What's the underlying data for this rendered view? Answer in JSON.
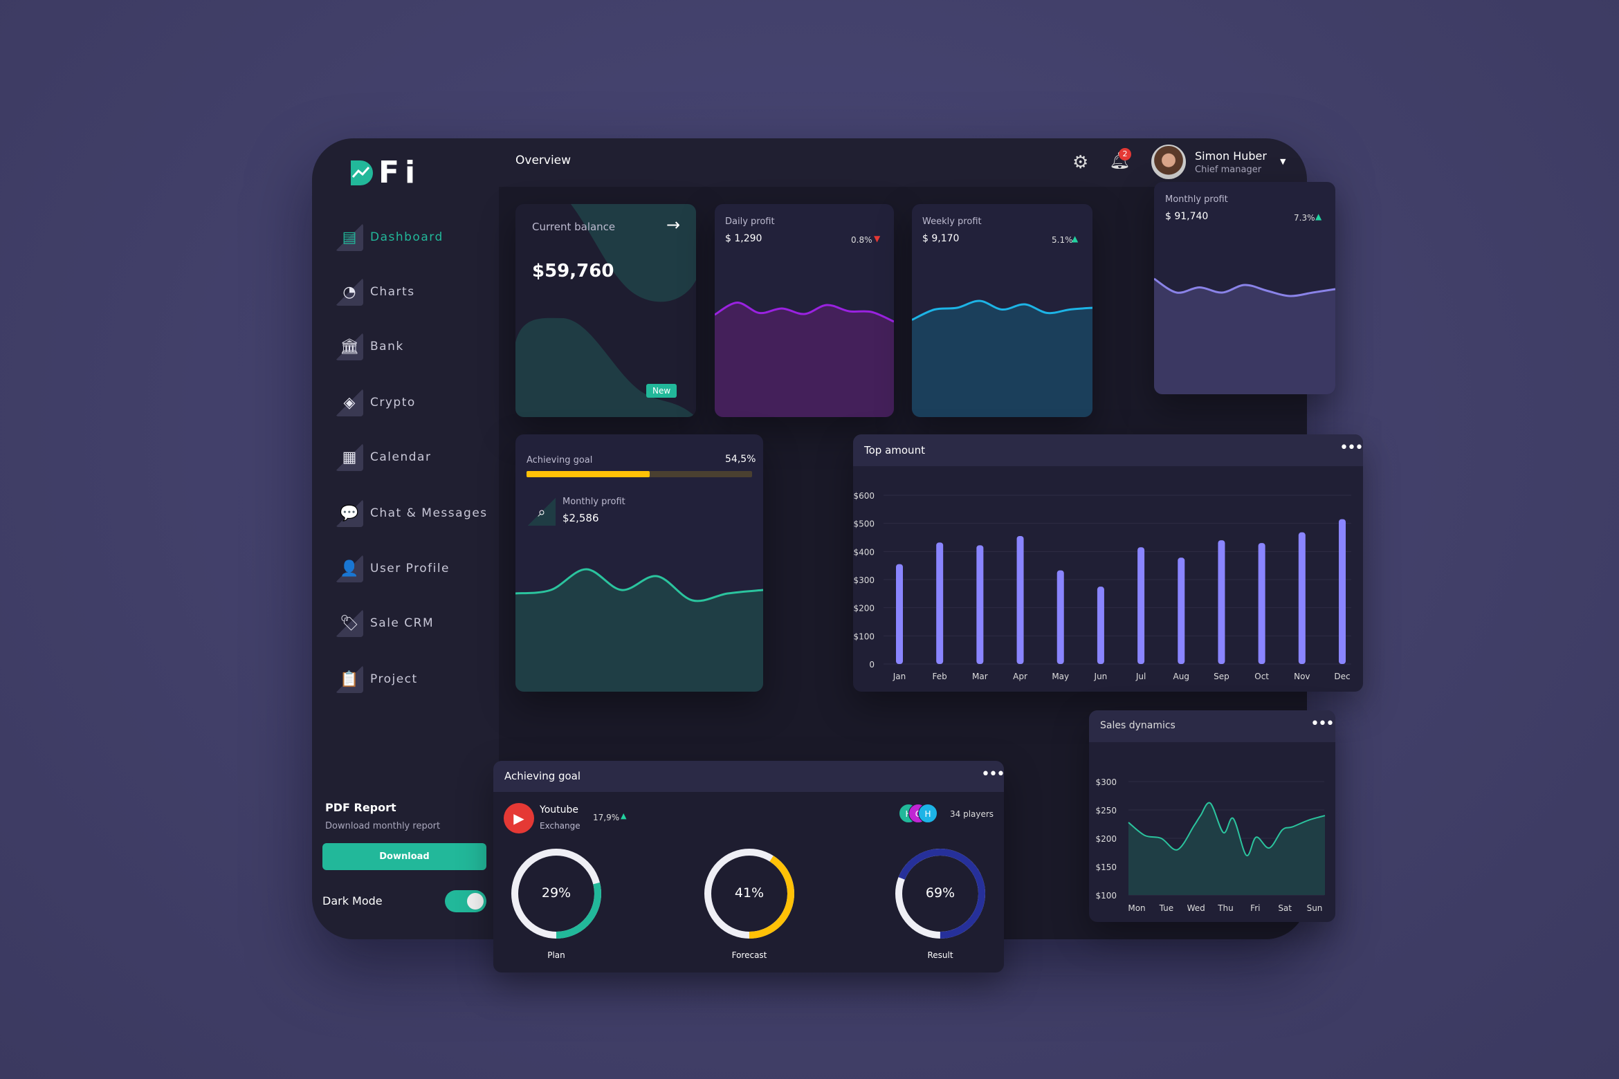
{
  "header": {
    "title": "Overview",
    "notifications": "2",
    "user_name": "Simon Huber",
    "user_role": "Chief manager"
  },
  "logo": {
    "text": "Fi"
  },
  "sidebar": {
    "items": [
      {
        "label": "Dashboard",
        "icon": "dashboard-icon",
        "glyph": "▤",
        "active": true
      },
      {
        "label": "Charts",
        "icon": "pie-chart-icon",
        "glyph": "◔"
      },
      {
        "label": "Bank",
        "icon": "bank-icon",
        "glyph": "🏛"
      },
      {
        "label": "Crypto",
        "icon": "layers-icon",
        "glyph": "◈"
      },
      {
        "label": "Calendar",
        "icon": "calendar-icon",
        "glyph": "▦"
      },
      {
        "label": "Chat & Messages",
        "icon": "chat-icon",
        "glyph": "💬"
      },
      {
        "label": "User Profile",
        "icon": "user-icon",
        "glyph": "👤"
      },
      {
        "label": "Sale CRM",
        "icon": "tag-icon",
        "glyph": "🏷"
      },
      {
        "label": "Project",
        "icon": "clipboard-icon",
        "glyph": "📋"
      }
    ],
    "pdf_title": "PDF Report",
    "pdf_subtitle": "Download monthly report",
    "download": "Download",
    "dark_mode": "Dark Mode",
    "dark_mode_on": true
  },
  "colors": {
    "accent": "#22b89a",
    "bars": "#8a85ff",
    "purple": "#9a22e0",
    "cyan": "#1db4e6",
    "yellow": "#ffc107",
    "navy": "#26309a",
    "red": "#e53935"
  },
  "balance": {
    "label": "Current balance",
    "value": "$59,760",
    "badge": "New"
  },
  "daily": {
    "label": "Daily profit",
    "value": "$ 1,290",
    "change": "0.8%",
    "trend": "down",
    "sparkline": [
      40,
      75,
      45,
      58,
      42,
      68,
      50,
      48,
      20
    ]
  },
  "weekly": {
    "label": "Weekly profit",
    "value": "$ 9,170",
    "change": "5.1%",
    "trend": "up",
    "sparkline": [
      25,
      55,
      60,
      80,
      55,
      70,
      45,
      55,
      60
    ]
  },
  "monthly": {
    "label": "Monthly profit",
    "value": "$ 91,740",
    "change": "7.3%",
    "trend": "up",
    "sparkline": [
      80,
      40,
      55,
      40,
      62,
      45,
      30,
      40,
      50
    ]
  },
  "goal_small": {
    "label": "Achieving goal",
    "percent": "54,5%",
    "progress": 0.545,
    "sub_label": "Monthly profit",
    "sub_value": "$2,586",
    "sparkline": [
      50,
      55,
      85,
      55,
      75,
      40,
      50,
      55
    ]
  },
  "top_amount": {
    "title": "Top amount"
  },
  "sales": {
    "title": "Sales dynamics"
  },
  "goal": {
    "title": "Achieving goal",
    "source": "Youtube",
    "source_sub": "Exchange",
    "change": "17,9%",
    "players": "34 players",
    "avatars": [
      "H",
      "C",
      "H"
    ],
    "rings": [
      {
        "label": "Plan",
        "text": "29%",
        "value": 0.29,
        "color": "#22b89a"
      },
      {
        "label": "Forecast",
        "text": "41%",
        "value": 0.41,
        "color": "#ffc107"
      },
      {
        "label": "Result",
        "text": "69%",
        "value": 0.69,
        "color": "#26309a"
      }
    ]
  },
  "chart_data": [
    {
      "type": "bar",
      "title": "Top amount",
      "categories": [
        "Jan",
        "Feb",
        "Mar",
        "Apr",
        "May",
        "Jun",
        "Jul",
        "Aug",
        "Sep",
        "Oct",
        "Nov",
        "Dec"
      ],
      "values": [
        355,
        432,
        422,
        455,
        333,
        275,
        415,
        378,
        440,
        430,
        468,
        515
      ],
      "yticks": [
        "0",
        "$100",
        "$200",
        "$300",
        "$400",
        "$500",
        "$600"
      ],
      "ylim": [
        0,
        600
      ],
      "grid": true
    },
    {
      "type": "area",
      "title": "Sales dynamics",
      "categories": [
        "Mon",
        "Tue",
        "Wed",
        "Thu",
        "Fri",
        "Sat",
        "Sun"
      ],
      "x": [
        0,
        0.5,
        1,
        1.5,
        2,
        2.2,
        2.5,
        2.9,
        3.2,
        3.6,
        3.9,
        4.3,
        4.7,
        5.0,
        5.5,
        6
      ],
      "values": [
        228,
        205,
        200,
        180,
        222,
        240,
        262,
        210,
        235,
        170,
        202,
        183,
        215,
        220,
        232,
        240
      ],
      "yticks": [
        "$100",
        "$150",
        "$200",
        "$250",
        "$300"
      ],
      "ylim": [
        100,
        300
      ],
      "grid": true
    }
  ]
}
